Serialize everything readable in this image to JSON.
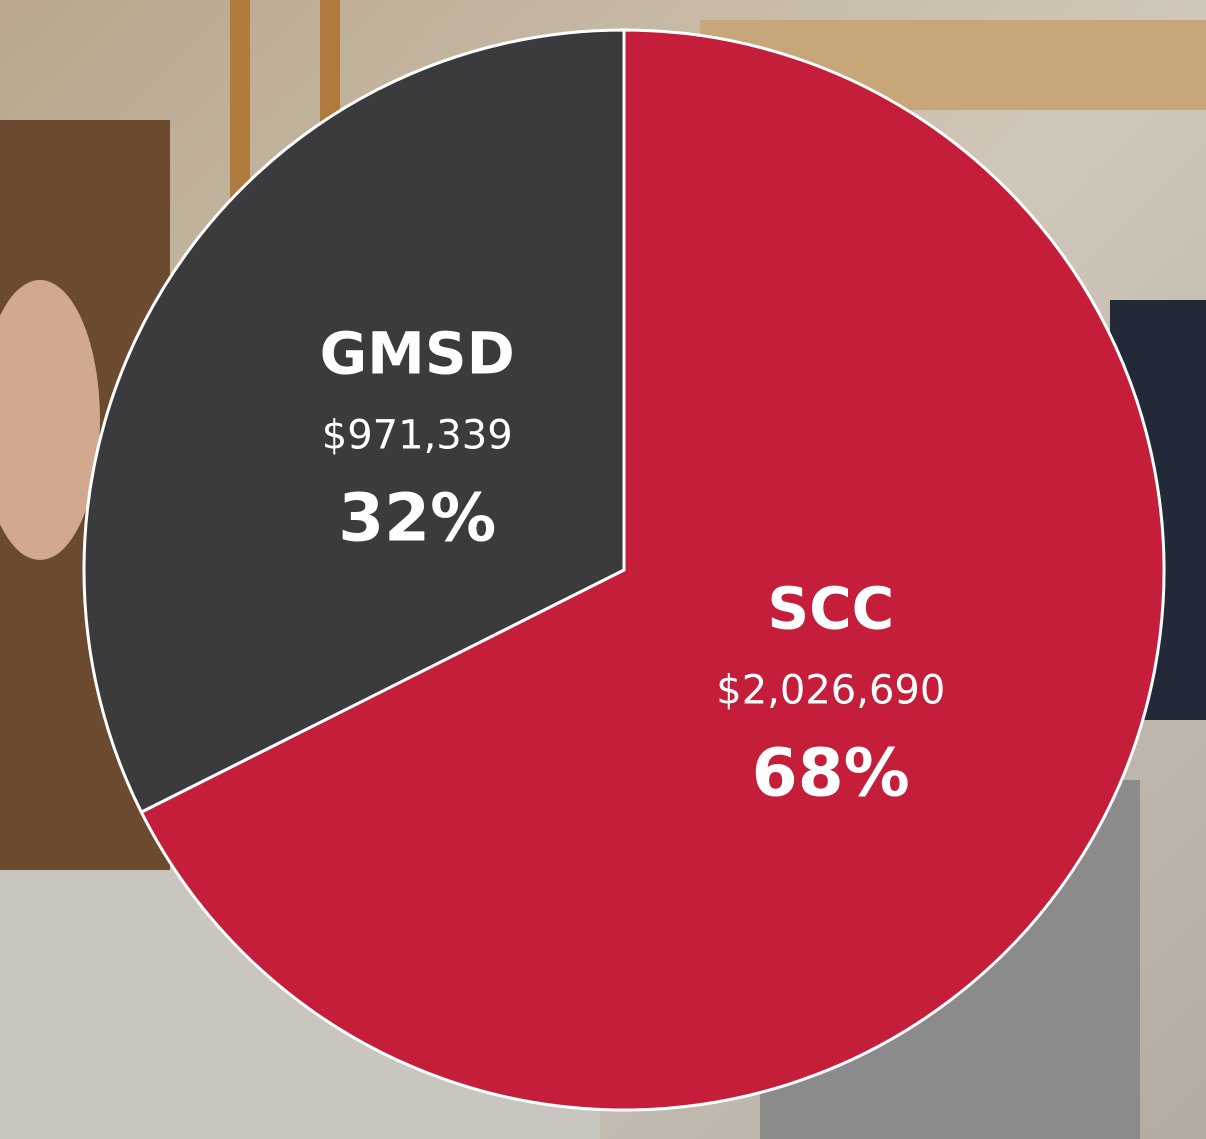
{
  "chart_data": {
    "type": "pie",
    "categories": [
      "SCC",
      "GMSD"
    ],
    "values": [
      2026690,
      971339
    ],
    "value_labels": [
      "$2,026,690",
      "$971,339"
    ],
    "percent_labels": [
      "68%",
      "32%"
    ],
    "colors": [
      "#c41e3a",
      "#3b3a3c"
    ]
  }
}
